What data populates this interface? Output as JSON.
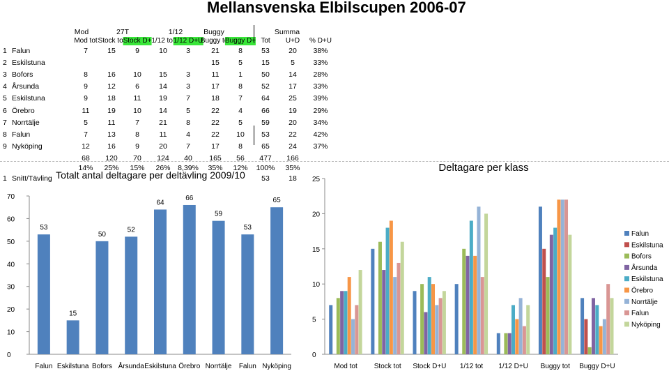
{
  "title": "Mellansvenska Elbilscupen 2006-07",
  "sheet": {
    "groups": [
      "Mod",
      "27T",
      "1/12",
      "Buggy",
      "Summa"
    ],
    "subheaders": [
      "Mod tot",
      "Stock tot",
      "Stock D+",
      "1/12 tot",
      "1/12 D+U",
      "Buggy tot",
      "Buggy D+",
      "Tot",
      "U+D",
      "% D+U"
    ],
    "rows": [
      {
        "n": "1",
        "name": "Falun",
        "v": [
          "7",
          "15",
          "9",
          "10",
          "3",
          "21",
          "8",
          "53",
          "20",
          "38%"
        ]
      },
      {
        "n": "2",
        "name": "Eskilstuna",
        "v": [
          "",
          "",
          "",
          "",
          "",
          "15",
          "5",
          "15",
          "5",
          "33%"
        ]
      },
      {
        "n": "3",
        "name": "Bofors",
        "v": [
          "8",
          "16",
          "10",
          "15",
          "3",
          "11",
          "1",
          "50",
          "14",
          "28%"
        ]
      },
      {
        "n": "4",
        "name": "Årsunda",
        "v": [
          "9",
          "12",
          "6",
          "14",
          "3",
          "17",
          "8",
          "52",
          "17",
          "33%"
        ]
      },
      {
        "n": "5",
        "name": "Eskilstuna",
        "v": [
          "9",
          "18",
          "11",
          "19",
          "7",
          "18",
          "7",
          "64",
          "25",
          "39%"
        ]
      },
      {
        "n": "6",
        "name": "Örebro",
        "v": [
          "11",
          "19",
          "10",
          "14",
          "5",
          "22",
          "4",
          "66",
          "19",
          "29%"
        ]
      },
      {
        "n": "7",
        "name": "Norrtälje",
        "v": [
          "5",
          "11",
          "7",
          "21",
          "8",
          "22",
          "5",
          "59",
          "20",
          "34%"
        ]
      },
      {
        "n": "8",
        "name": "Falun",
        "v": [
          "7",
          "13",
          "8",
          "11",
          "4",
          "22",
          "10",
          "53",
          "22",
          "42%"
        ]
      },
      {
        "n": "9",
        "name": "Nyköping",
        "v": [
          "12",
          "16",
          "9",
          "20",
          "7",
          "17",
          "8",
          "65",
          "24",
          "37%"
        ]
      }
    ],
    "totals": [
      "68",
      "120",
      "70",
      "124",
      "40",
      "165",
      "56",
      "477",
      "166"
    ],
    "percents": [
      "14%",
      "25%",
      "15%",
      "26%",
      "8,39%",
      "35%",
      "12%",
      "100%",
      "35%"
    ],
    "snitt": {
      "n": "1",
      "label": "Snitt/Tävling",
      "tot": "53",
      "ud": "18"
    }
  },
  "chart_data": [
    {
      "type": "bar",
      "title": "Totalt antal deltagare per deltävling 2009/10",
      "categories": [
        "Falun",
        "Eskilstuna",
        "Bofors",
        "Årsunda",
        "Eskilstuna",
        "Örebro",
        "Norrtälje",
        "Falun",
        "Nyköping"
      ],
      "values": [
        53,
        15,
        50,
        52,
        64,
        66,
        59,
        53,
        65
      ],
      "ylim": [
        0,
        70
      ],
      "yticks": [
        "0",
        "10",
        "20",
        "30",
        "40",
        "50",
        "60",
        "70"
      ],
      "color": "#4f81bd",
      "grid": false
    },
    {
      "type": "bar",
      "title": "Deltagare per klass",
      "categories": [
        "Mod tot",
        "Stock tot",
        "Stock D+U",
        "1/12 tot",
        "1/12 D+U",
        "Buggy tot",
        "Buggy D+U"
      ],
      "ylim": [
        0,
        25
      ],
      "yticks": [
        "0",
        "5",
        "10",
        "15",
        "20",
        "25"
      ],
      "legend": "right",
      "series": [
        {
          "name": "Falun",
          "color": "#4f81bd",
          "values": [
            7,
            15,
            9,
            10,
            3,
            21,
            8
          ]
        },
        {
          "name": "Eskilstuna",
          "color": "#c0504d",
          "values": [
            0,
            0,
            0,
            0,
            0,
            15,
            5
          ]
        },
        {
          "name": "Bofors",
          "color": "#9bbb59",
          "values": [
            8,
            16,
            10,
            15,
            3,
            11,
            1
          ]
        },
        {
          "name": "Årsunda",
          "color": "#8064a2",
          "values": [
            9,
            12,
            6,
            14,
            3,
            17,
            8
          ]
        },
        {
          "name": "Eskilstuna",
          "color": "#4bacc6",
          "values": [
            9,
            18,
            11,
            19,
            7,
            18,
            7
          ]
        },
        {
          "name": "Örebro",
          "color": "#f79646",
          "values": [
            11,
            19,
            10,
            14,
            5,
            22,
            4
          ]
        },
        {
          "name": "Norrtälje",
          "color": "#95b3d7",
          "values": [
            5,
            11,
            7,
            21,
            8,
            22,
            5
          ]
        },
        {
          "name": "Falun",
          "color": "#d99694",
          "values": [
            7,
            13,
            8,
            11,
            4,
            22,
            10
          ]
        },
        {
          "name": "Nyköping",
          "color": "#c3d69b",
          "values": [
            12,
            16,
            9,
            20,
            7,
            17,
            8
          ]
        }
      ]
    }
  ]
}
